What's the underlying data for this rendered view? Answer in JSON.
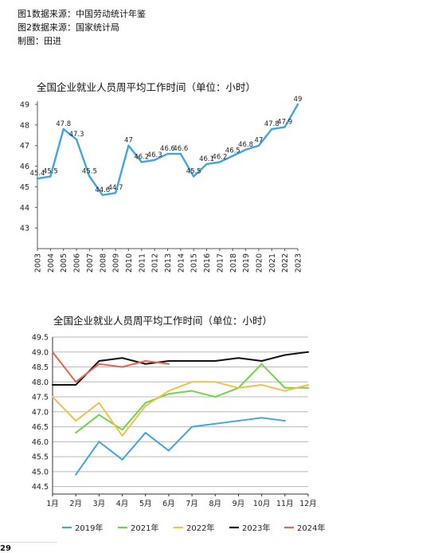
{
  "sources": [
    "图1数据来源：中国劳动统计年鉴",
    "图2数据来源：国家统计局",
    "制图：田进"
  ],
  "page_number": "29",
  "chart_data": [
    {
      "type": "line",
      "title": "全国企业就业人员周平均工作时间（单位：小时）",
      "x": [
        "2003",
        "2004",
        "2005",
        "2006",
        "2007",
        "2008",
        "2009",
        "2010",
        "2011",
        "2012",
        "2013",
        "2014",
        "2015",
        "2016",
        "2017",
        "2018",
        "2019",
        "2020",
        "2021",
        "2022",
        "2023"
      ],
      "series": [
        {
          "values": [
            45.4,
            45.5,
            47.8,
            47.3,
            45.5,
            44.6,
            44.7,
            47,
            46.2,
            46.3,
            46.6,
            46.6,
            45.5,
            46.1,
            46.2,
            46.5,
            46.8,
            47,
            47.8,
            47.9,
            49
          ],
          "color": "#41a4e3"
        }
      ],
      "y_ticks": [
        "43",
        "44",
        "45",
        "46",
        "47",
        "48",
        "49"
      ],
      "ylim": [
        42,
        49
      ],
      "grid": false,
      "xlabel": "",
      "ylabel": ""
    },
    {
      "type": "line",
      "title": "全国企业就业人员周平均工作时间（单位：小时）",
      "categories": [
        "1月",
        "2月",
        "3月",
        "4月",
        "5月",
        "6月",
        "7月",
        "8月",
        "9月",
        "10月",
        "11月",
        "12月"
      ],
      "series": [
        {
          "name": "2019年",
          "color": "#41a4e3",
          "values": [
            null,
            44.9,
            46.0,
            45.4,
            46.3,
            45.7,
            46.5,
            46.6,
            46.7,
            46.8,
            46.7,
            null
          ]
        },
        {
          "name": "2021年",
          "color": "#6fd44a",
          "values": [
            null,
            46.3,
            46.9,
            46.4,
            47.3,
            47.6,
            47.7,
            47.5,
            47.8,
            48.6,
            47.8,
            47.8
          ]
        },
        {
          "name": "2022年",
          "color": "#f2c04b",
          "values": [
            47.5,
            46.7,
            47.3,
            46.2,
            47.2,
            47.7,
            48.0,
            48.0,
            47.8,
            47.9,
            47.7,
            47.9
          ]
        },
        {
          "name": "2023年",
          "color": "#111111",
          "values": [
            47.9,
            47.9,
            48.7,
            48.8,
            48.6,
            48.7,
            48.7,
            48.7,
            48.8,
            48.7,
            48.9,
            49.0
          ]
        },
        {
          "name": "2024年",
          "color": "#e8654f",
          "values": [
            49.0,
            48.0,
            48.6,
            48.5,
            48.7,
            48.6,
            null,
            null,
            null,
            null,
            null,
            null
          ]
        }
      ],
      "y_ticks": [
        "44.5",
        "45.0",
        "45.5",
        "46.0",
        "46.5",
        "47.0",
        "47.5",
        "48.0",
        "48.5",
        "49.0",
        "49.5"
      ],
      "ylim": [
        44.5,
        49.5
      ],
      "grid": true,
      "legend_position": "bottom",
      "xlabel": "",
      "ylabel": ""
    }
  ]
}
